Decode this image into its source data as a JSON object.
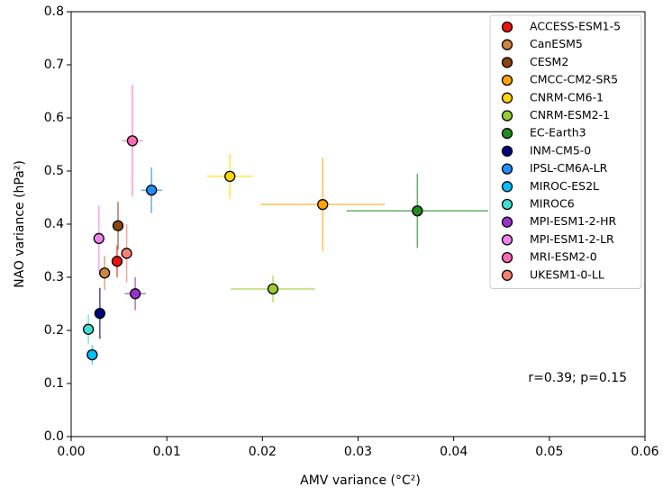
{
  "chart_data": {
    "type": "scatter",
    "xlabel": "AMV variance (°C²)",
    "ylabel": "NAO variance (hPa²)",
    "annotation": "r=0.39; p=0.15",
    "xlim": [
      0,
      0.06
    ],
    "ylim": [
      0,
      0.8
    ],
    "xticks": [
      {
        "value": 0,
        "label": "0.00"
      },
      {
        "value": 0.01,
        "label": "0.01"
      },
      {
        "value": 0.02,
        "label": "0.02"
      },
      {
        "value": 0.03,
        "label": "0.03"
      },
      {
        "value": 0.04,
        "label": "0.04"
      },
      {
        "value": 0.05,
        "label": "0.05"
      },
      {
        "value": 0.06,
        "label": "0.06"
      }
    ],
    "yticks": [
      {
        "value": 0,
        "label": "0.0"
      },
      0.1,
      0.2,
      0.3,
      0.4,
      0.5,
      0.6,
      0.7,
      0.8
    ],
    "legend": "upper right",
    "series": [
      {
        "name": "ACCESS-ESM1-5",
        "color": "#ee1111",
        "x": [
          0.0048
        ],
        "values": [
          0.33
        ],
        "xerr": [
          0.0005
        ],
        "yerr": [
          0.03
        ]
      },
      {
        "name": "CanESM5",
        "color": "#cd853f",
        "x": [
          0.0035
        ],
        "values": [
          0.308
        ],
        "xerr": [
          0.0005
        ],
        "yerr": [
          0.032
        ]
      },
      {
        "name": "CESM2",
        "color": "#8b4513",
        "x": [
          0.0049
        ],
        "values": [
          0.397
        ],
        "xerr": [
          0.0004
        ],
        "yerr": [
          0.045
        ]
      },
      {
        "name": "CMCC-CM2-SR5",
        "color": "#ffa500",
        "x": [
          0.0263
        ],
        "values": [
          0.437
        ],
        "xerr": [
          0.0065
        ],
        "yerr": [
          0.088
        ]
      },
      {
        "name": "CNRM-CM6-1",
        "color": "#ffd700",
        "x": [
          0.0166
        ],
        "values": [
          0.49
        ],
        "xerr": [
          0.0024
        ],
        "yerr": [
          0.043
        ]
      },
      {
        "name": "CNRM-ESM2-1",
        "color": "#9acd32",
        "x": [
          0.0211
        ],
        "values": [
          0.278
        ],
        "xerr": [
          0.0044
        ],
        "yerr": [
          0.025
        ]
      },
      {
        "name": "EC-Earth3",
        "color": "#228b22",
        "x": [
          0.0362
        ],
        "values": [
          0.425
        ],
        "xerr": [
          0.0074
        ],
        "yerr": [
          0.07
        ]
      },
      {
        "name": "INM-CM5-0",
        "color": "#000080",
        "x": [
          0.003
        ],
        "values": [
          0.232
        ],
        "xerr": [
          0.0005
        ],
        "yerr": [
          0.048
        ]
      },
      {
        "name": "IPSL-CM6A-LR",
        "color": "#1e90ff",
        "x": [
          0.0084
        ],
        "values": [
          0.464
        ],
        "xerr": [
          0.0011
        ],
        "yerr": [
          0.043
        ]
      },
      {
        "name": "MIROC-ES2L",
        "color": "#00bfff",
        "x": [
          0.0022
        ],
        "values": [
          0.154
        ],
        "xerr": [
          0.0003
        ],
        "yerr": [
          0.018
        ]
      },
      {
        "name": "MIROC6",
        "color": "#40e0d0",
        "x": [
          0.0018
        ],
        "values": [
          0.202
        ],
        "xerr": [
          0.0003
        ],
        "yerr": [
          0.028
        ]
      },
      {
        "name": "MPI-ESM1-2-HR",
        "color": "#9932cc",
        "x": [
          0.0067
        ],
        "values": [
          0.269
        ],
        "xerr": [
          0.0011
        ],
        "yerr": [
          0.031
        ]
      },
      {
        "name": "MPI-ESM1-2-LR",
        "color": "#ee82ee",
        "x": [
          0.0029
        ],
        "values": [
          0.373
        ],
        "xerr": [
          0.0003
        ],
        "yerr": [
          0.062
        ]
      },
      {
        "name": "MRI-ESM2-0",
        "color": "#ff69b4",
        "x": [
          0.0064
        ],
        "values": [
          0.557
        ],
        "xerr": [
          0.0011
        ],
        "yerr": [
          0.105
        ]
      },
      {
        "name": "UKESM1-0-LL",
        "color": "#fa8072",
        "x": [
          0.0058
        ],
        "values": [
          0.345
        ],
        "xerr": [
          0.0004
        ],
        "yerr": [
          0.055
        ]
      }
    ]
  }
}
